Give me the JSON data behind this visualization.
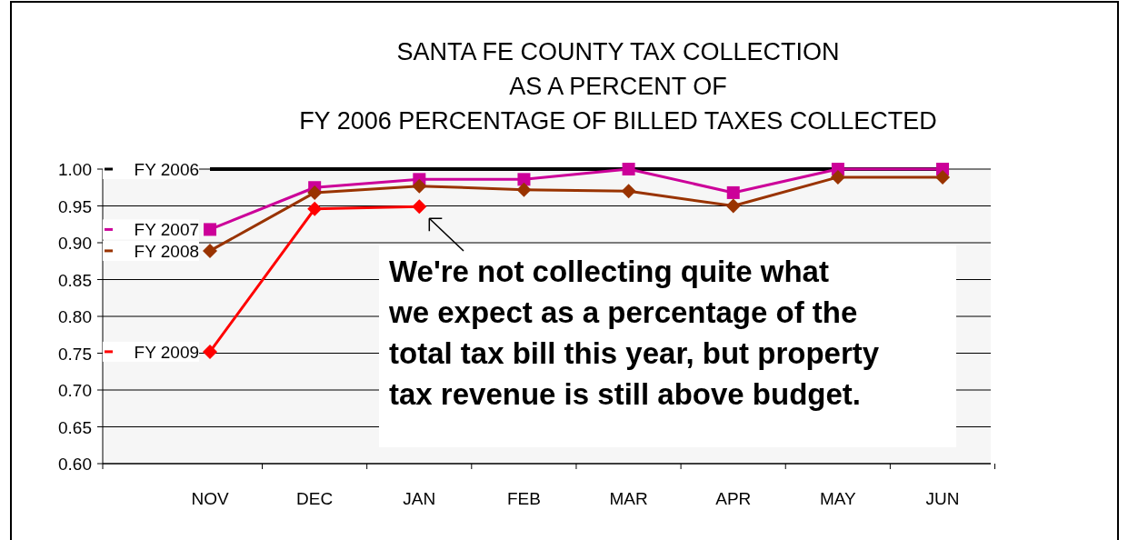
{
  "chart_data": {
    "type": "line",
    "title": "SANTA FE COUNTY TAX COLLECTION\nAS A PERCENT OF\nFY 2006 PERCENTAGE OF BILLED TAXES COLLECTED",
    "categories": [
      "NOV",
      "DEC",
      "JAN",
      "FEB",
      "MAR",
      "APR",
      "MAY",
      "JUN"
    ],
    "series": [
      {
        "name": "FY 2006",
        "color": "#000000",
        "marker": "none",
        "values": [
          1,
          1,
          1,
          1,
          1,
          1,
          1,
          1
        ]
      },
      {
        "name": "FY 2007",
        "color": "#cc0099",
        "marker": "square",
        "values": [
          0.918,
          0.975,
          0.986,
          0.986,
          1.0,
          0.968,
          1.0,
          1.0
        ]
      },
      {
        "name": "FY 2008",
        "color": "#993300",
        "marker": "diamond",
        "values": [
          0.889,
          0.968,
          0.977,
          0.972,
          0.97,
          0.95,
          0.989,
          0.989
        ]
      },
      {
        "name": "FY 2009",
        "color": "#ff0000",
        "marker": "diamond",
        "values": [
          0.752,
          0.946,
          0.949,
          null,
          null,
          null,
          null,
          null
        ]
      }
    ],
    "ylim": [
      0.6,
      1.0
    ],
    "yticks": [
      {
        "value": 0.6,
        "label": "0.60"
      },
      {
        "value": 0.65,
        "label": "0.65"
      },
      {
        "value": 0.7,
        "label": "0.70"
      },
      {
        "value": 0.75,
        "label": "0.75"
      },
      {
        "value": 0.8,
        "label": "0.80"
      },
      {
        "value": 0.85,
        "label": "0.85"
      },
      {
        "value": 0.9,
        "label": "0.90"
      },
      {
        "value": 0.95,
        "label": "0.95"
      },
      {
        "value": 1.0,
        "label": "1.00"
      }
    ],
    "grid": "y",
    "legend": "left",
    "annotations": [
      {
        "text": "We're not collecting quite what\nwe expect as a percentage of the\ntotal tax bill this year, but property\ntax revenue is still above budget.",
        "x": "JAN",
        "y": 0.949
      }
    ]
  }
}
